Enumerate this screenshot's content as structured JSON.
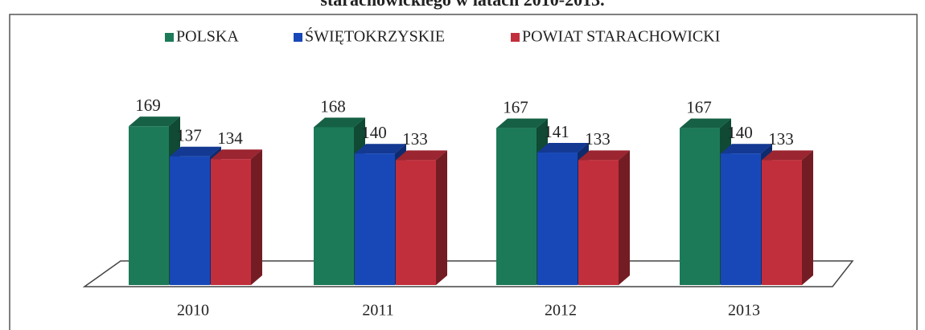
{
  "chart_data": {
    "type": "bar3d",
    "title": "starachowickiego w latach 2010-2013.",
    "categories": [
      "2010",
      "2011",
      "2012",
      "2013"
    ],
    "series": [
      {
        "name": "POLSKA",
        "color": "#1c7a58",
        "values": [
          169,
          168,
          167,
          167
        ]
      },
      {
        "name": "ŚWIĘTOKRZYSKIE",
        "color": "#1848b8",
        "values": [
          137,
          140,
          141,
          140
        ]
      },
      {
        "name": "POWIAT STARACHOWICKI",
        "color": "#c22f3c",
        "values": [
          134,
          133,
          133,
          133
        ]
      }
    ],
    "legend": "top"
  }
}
